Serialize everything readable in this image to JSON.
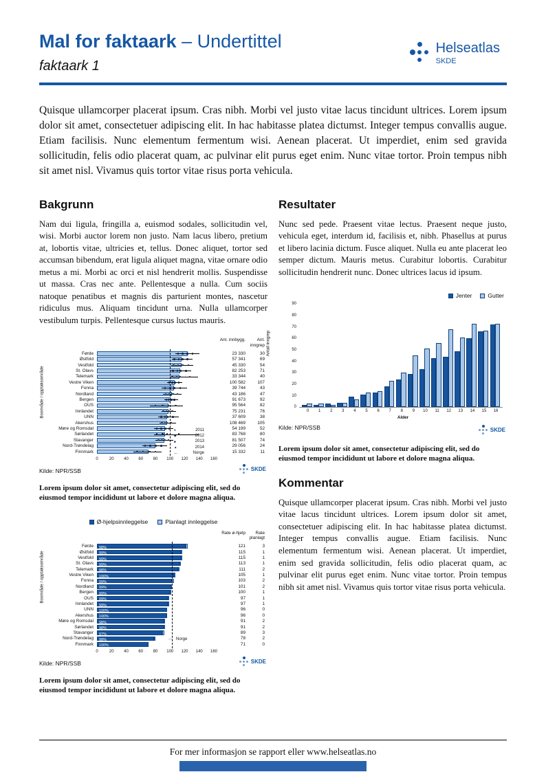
{
  "header": {
    "title": "Mal for faktaark",
    "subtitle": "– Undertittel",
    "doc_label": "faktaark 1",
    "logo": {
      "name": "Helseatlas",
      "org": "SKDE"
    }
  },
  "intro": "Quisque ullamcorper placerat ipsum. Cras nibh. Morbi vel justo vitae lacus tincidunt ultrices. Lorem ipsum dolor sit amet, consectetuer adipiscing elit. In hac habitasse platea dictumst. Integer tempus convallis augue. Etiam facilisis. Nunc elementum fermentum wisi. Aenean placerat. Ut imperdiet, enim sed gravida sollicitudin, felis odio placerat quam, ac pulvinar elit purus eget enim. Nunc vitae tortor. Proin tempus nibh sit amet nisl. Vivamus quis tortor vitae risus porta vehicula.",
  "sections": {
    "bakgrunn": {
      "heading": "Bakgrunn",
      "body": "Nam dui ligula, fringilla a, euismod sodales, sollicitudin vel, wisi. Morbi auctor lorem non justo. Nam lacus libero, pretium at, lobortis vitae, ultricies et, tellus. Donec aliquet, tortor sed accumsan bibendum, erat ligula aliquet magna, vitae ornare odio metus a mi. Morbi ac orci et nisl hendrerit mollis. Suspendisse ut massa. Cras nec ante. Pellentesque a nulla. Cum sociis natoque penatibus et magnis dis parturient montes, nascetur ridiculus mus. Aliquam tincidunt urna. Nulla ullamcorper vestibulum turpis. Pellentesque cursus luctus mauris."
    },
    "resultater": {
      "heading": "Resultater",
      "body": "Nunc sed pede. Praesent vitae lectus. Praesent neque justo, vehicula eget, interdum id, facilisis et, nibh. Phasellus at purus et libero lacinia dictum. Fusce aliquet. Nulla eu ante placerat leo semper dictum. Mauris metus. Curabitur lobortis. Curabitur sollicitudin hendrerit nunc. Donec ultrices lacus id ipsum."
    },
    "kommentar": {
      "heading": "Kommentar",
      "body": "Quisque ullamcorper placerat ipsum. Cras nibh. Morbi vel justo vitae lacus tincidunt ultrices. Lorem ipsum dolor sit amet, consectetuer adipiscing elit. In hac habitasse platea dictumst. Integer tempus convallis augue. Etiam facilisis. Nunc elementum fermentum wisi. Aenean placerat. Ut imperdiet, enim sed gravida sollicitudin, felis odio placerat quam, ac pulvinar elit purus eget enim. Nunc vitae tortor. Proin tempus nibh sit amet nisl. Vivamus quis tortor vitae risus porta vehicula."
    }
  },
  "caption": "Lorem ipsum dolor sit amet, consectetur adipiscing elit, sed do eiusmod tempor incididunt ut labore et dolore magna aliqua.",
  "footer": {
    "text": "For mer informasjon se rapport eller www.helseatlas.no"
  },
  "colors": {
    "brand_blue": "#1657a5",
    "bar_dark": "#17549e",
    "bar_light": "#a9c8e7",
    "point_dark": "#0c2246"
  },
  "chart_data": [
    {
      "id": "chartA",
      "type": "bar",
      "orientation": "horizontal",
      "ylabel": "Boområde / opptaksområde",
      "xlim": [
        0,
        160
      ],
      "xticks": [
        0,
        20,
        40,
        60,
        80,
        100,
        120,
        140,
        160
      ],
      "reference_line": {
        "label": "Norge",
        "value": 100,
        "style": "dashed"
      },
      "legend": [
        {
          "label": "2011",
          "glyph": "●"
        },
        {
          "label": "2012",
          "glyph": "◆"
        },
        {
          "label": "2013",
          "glyph": "■"
        },
        {
          "label": "2014",
          "glyph": "▲"
        },
        {
          "label": "Norge",
          "glyph": "―"
        }
      ],
      "col_headers": [
        "Ant. innbygg.",
        "Ant. inngrep"
      ],
      "source": "Kilde: NPR/SSB",
      "rows": [
        {
          "label": "Førde",
          "value": 124,
          "ci": [
            107,
            140
          ],
          "points": [
            111,
            117,
            124,
            131
          ],
          "innbygg": "23 330",
          "inngrep": "30"
        },
        {
          "label": "Østfold",
          "value": 116,
          "ci": [
            103,
            131
          ],
          "points": [
            106,
            112,
            117,
            124
          ],
          "innbygg": "57 341",
          "inngrep": "69"
        },
        {
          "label": "Vestfold",
          "value": 116,
          "ci": [
            102,
            132
          ],
          "points": [
            105,
            111,
            117,
            125
          ],
          "innbygg": "45 330",
          "inngrep": "54"
        },
        {
          "label": "St. Olavs",
          "value": 114,
          "ci": [
            101,
            129
          ],
          "points": [
            104,
            110,
            115,
            122
          ],
          "innbygg": "82 253",
          "inngrep": "71"
        },
        {
          "label": "Telemark",
          "value": 113,
          "ci": [
            100,
            138
          ],
          "points": [
            103,
            109,
            114,
            127
          ],
          "innbygg": "33 344",
          "inngrep": "40"
        },
        {
          "label": "Vestre Viken",
          "value": 106,
          "ci": [
            96,
            117
          ],
          "points": [
            99,
            103,
            107,
            112
          ],
          "innbygg": "100 582",
          "inngrep": "107"
        },
        {
          "label": "Fonna",
          "value": 105,
          "ci": [
            88,
            123
          ],
          "points": [
            93,
            100,
            106,
            114
          ],
          "innbygg": "39 744",
          "inngrep": "43"
        },
        {
          "label": "Nordland",
          "value": 103,
          "ci": [
            90,
            116
          ],
          "points": [
            94,
            99,
            104,
            110
          ],
          "innbygg": "43 186",
          "inngrep": "47"
        },
        {
          "label": "Bergen",
          "value": 101,
          "ci": [
            92,
            111
          ],
          "points": [
            95,
            98,
            102,
            106
          ],
          "innbygg": "91 673",
          "inngrep": "92"
        },
        {
          "label": "OUS",
          "value": 98,
          "ci": [
            72,
            118
          ],
          "points": [
            80,
            90,
            98,
            108
          ],
          "innbygg": "95 564",
          "inngrep": "82"
        },
        {
          "label": "Innlandet",
          "value": 98,
          "ci": [
            88,
            108
          ],
          "points": [
            91,
            95,
            99,
            103
          ],
          "innbygg": "75 231",
          "inngrep": "76"
        },
        {
          "label": "UNN",
          "value": 96,
          "ci": [
            84,
            112
          ],
          "points": [
            88,
            93,
            97,
            104
          ],
          "innbygg": "37 609",
          "inngrep": "38"
        },
        {
          "label": "Akershus",
          "value": 96,
          "ci": [
            86,
            108
          ],
          "points": [
            89,
            93,
            96,
            101
          ],
          "innbygg": "108 469",
          "inngrep": "105"
        },
        {
          "label": "Møre og Romsdal",
          "value": 93,
          "ci": [
            78,
            104
          ],
          "points": [
            82,
            88,
            94,
            99
          ],
          "innbygg": "54 199",
          "inngrep": "52"
        },
        {
          "label": "Sørlandet",
          "value": 93,
          "ci": [
            78,
            140
          ],
          "points": [
            82,
            90,
            96,
            112
          ],
          "innbygg": "83 768",
          "inngrep": "80"
        },
        {
          "label": "Stavanger",
          "value": 92,
          "ci": [
            80,
            104
          ],
          "points": [
            84,
            89,
            93,
            98
          ],
          "innbygg": "81 507",
          "inngrep": "74"
        },
        {
          "label": "Nord-Trøndelag",
          "value": 80,
          "ci": [
            62,
            96
          ],
          "points": [
            66,
            73,
            81,
            88
          ],
          "innbygg": "29 056",
          "inngrep": "24"
        },
        {
          "label": "Finnmark",
          "value": 71,
          "ci": [
            50,
            88
          ],
          "points": [
            55,
            63,
            72,
            80
          ],
          "innbygg": "15 332",
          "inngrep": "11"
        }
      ]
    },
    {
      "id": "chartB",
      "type": "bar",
      "orientation": "vertical",
      "xlabel": "Alder",
      "ylabel": "Antall inngrep",
      "ylim": [
        0,
        90
      ],
      "yticks": [
        0,
        10,
        20,
        30,
        40,
        50,
        60,
        70,
        80,
        90
      ],
      "categories": [
        "0",
        "1",
        "2",
        "3",
        "4",
        "5",
        "6",
        "7",
        "8",
        "9",
        "10",
        "11",
        "12",
        "13",
        "14",
        "15",
        "16"
      ],
      "series": [
        {
          "name": "Jenter",
          "color": "#17549e",
          "values": [
            2,
            2,
            3,
            4,
            9,
            11,
            13,
            18,
            24,
            29,
            33,
            43,
            44,
            49,
            60,
            66,
            72
          ]
        },
        {
          "name": "Gutter",
          "color": "#a9c8e7",
          "values": [
            3,
            3,
            2,
            4,
            7,
            13,
            14,
            23,
            30,
            45,
            51,
            56,
            68,
            61,
            73,
            67,
            73
          ]
        }
      ],
      "source": "Kilde: NPR/SSB"
    },
    {
      "id": "chartC",
      "type": "bar",
      "orientation": "horizontal",
      "stacked": true,
      "ylabel": "Boområde / opptaksområde",
      "xlim": [
        0,
        160
      ],
      "xticks": [
        0,
        20,
        40,
        60,
        80,
        100,
        120,
        140,
        160
      ],
      "reference_line": {
        "label": "Norge",
        "value": 103,
        "style": "dashed"
      },
      "legend": [
        {
          "name": "Ø-hjelpsinnleggelse",
          "color": "#17549e"
        },
        {
          "name": "Planlagt innleggelse",
          "color": "#a9c8e7"
        }
      ],
      "col_headers": [
        "Rate ø-hjelp",
        "Rate planlagt"
      ],
      "source": "Kilde: NPR/SSB",
      "rows": [
        {
          "label": "Førde",
          "pct": "98%",
          "ehjelp": 121,
          "planlagt": 3
        },
        {
          "label": "Østfold",
          "pct": "99%",
          "ehjelp": 115,
          "planlagt": 1
        },
        {
          "label": "Vestfold",
          "pct": "99%",
          "ehjelp": 115,
          "planlagt": 1
        },
        {
          "label": "St. Olavs",
          "pct": "99%",
          "ehjelp": 113,
          "planlagt": 1
        },
        {
          "label": "Telemark",
          "pct": "98%",
          "ehjelp": 111,
          "planlagt": 2
        },
        {
          "label": "Vestre Viken",
          "pct": "100%",
          "ehjelp": 105,
          "planlagt": 1
        },
        {
          "label": "Fonna",
          "pct": "99%",
          "ehjelp": 103,
          "planlagt": 2
        },
        {
          "label": "Nordland",
          "pct": "99%",
          "ehjelp": 101,
          "planlagt": 2
        },
        {
          "label": "Bergen",
          "pct": "99%",
          "ehjelp": 100,
          "planlagt": 1
        },
        {
          "label": "OUS",
          "pct": "99%",
          "ehjelp": 97,
          "planlagt": 1
        },
        {
          "label": "Innlandet",
          "pct": "99%",
          "ehjelp": 97,
          "planlagt": 1
        },
        {
          "label": "UNN",
          "pct": "100%",
          "ehjelp": 96,
          "planlagt": 0
        },
        {
          "label": "Akershus",
          "pct": "100%",
          "ehjelp": 96,
          "planlagt": 0
        },
        {
          "label": "Møre og Romsdal",
          "pct": "98%",
          "ehjelp": 91,
          "planlagt": 2
        },
        {
          "label": "Sørlandet",
          "pct": "98%",
          "ehjelp": 91,
          "planlagt": 2
        },
        {
          "label": "Stavanger",
          "pct": "97%",
          "ehjelp": 89,
          "planlagt": 3
        },
        {
          "label": "Nord-Trøndelag",
          "pct": "98%",
          "ehjelp": 78,
          "planlagt": 2
        },
        {
          "label": "Finnmark",
          "pct": "100%",
          "ehjelp": 71,
          "planlagt": 0
        }
      ]
    }
  ]
}
